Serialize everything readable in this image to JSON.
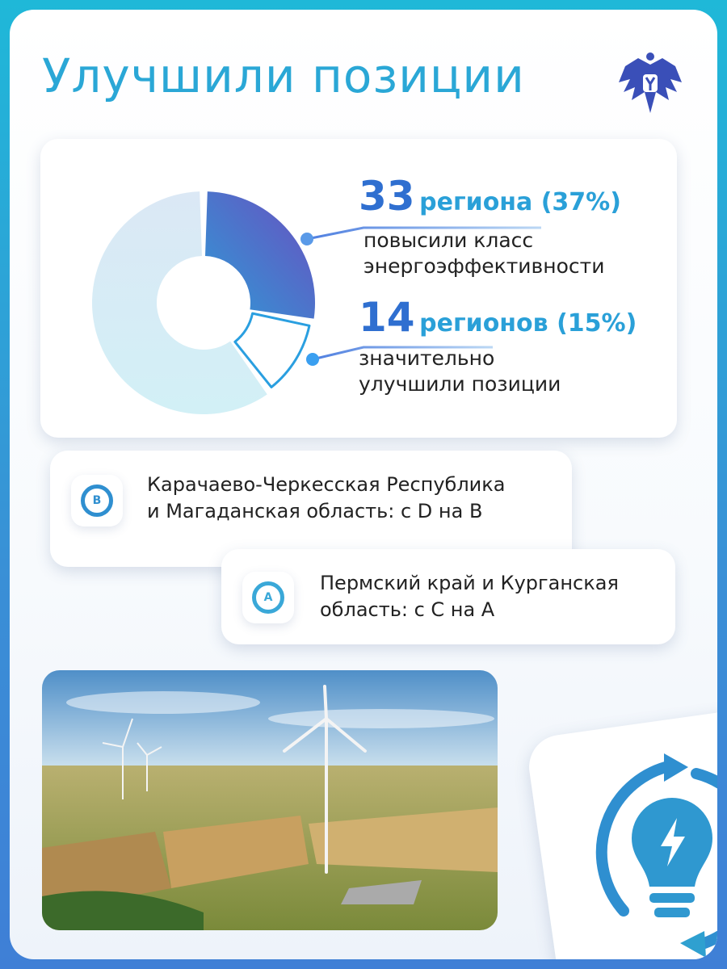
{
  "title": "Улучшили позиции",
  "stats": [
    {
      "number": "33",
      "unit_text": "региона (37%)",
      "description_lines": [
        "повысили класс",
        "энергоэффективности"
      ],
      "percent": 37
    },
    {
      "number": "14",
      "unit_text": "регионов (15%)",
      "description_lines": [
        "значительно",
        "улучшили позиции"
      ],
      "percent": 15
    }
  ],
  "regions": [
    {
      "badge": "B",
      "lines": [
        "Карачаево-Черкесская Республика",
        "и Магаданская область: с D на B"
      ]
    },
    {
      "badge": "A",
      "lines": [
        "Пермский край и Курганская",
        "область: с C на A"
      ]
    }
  ],
  "icons": {
    "emblem": "double-headed-eagle-emblem",
    "bulb": "lightbulb-refresh-icon"
  },
  "colors": {
    "accent": "#2aa7d6",
    "dark_segment": "#5a5fc8",
    "light_segment": "#d6eef6",
    "outline_segment": "#2a9fe0"
  }
}
